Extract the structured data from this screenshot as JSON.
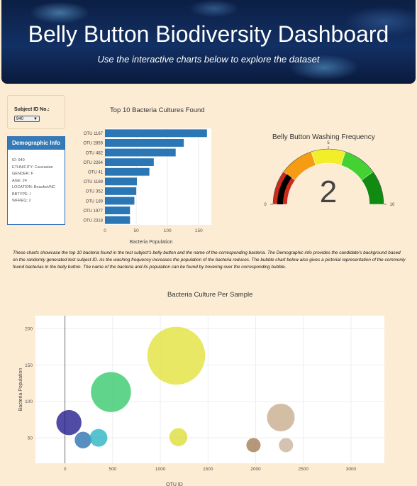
{
  "header": {
    "title": "Belly Button Biodiversity Dashboard",
    "subtitle": "Use the interactive charts below to explore the dataset"
  },
  "selector": {
    "label": "Subject ID No.:",
    "selected": "940"
  },
  "demographics": {
    "title": "Demographic Info",
    "items": [
      "ID: 940",
      "ETHNICITY: Caucasian",
      "GENDER: F",
      "AGE: 24",
      "LOCATION: Beaufort/NC",
      "BBTYPE: I",
      "WFREQ: 2"
    ]
  },
  "description": "These charts showcase the top 10 bacteria found in the test subject's belly button and the name of the corresponding bacteria. The Demographic info provides the candidate's background based on the randomly generated test subject ID. As the washing frequency increases the population of the bacteria reduces. The bubble chart below also gives a pictorial representation of the commonly found bacterias in the belly button. The name of the bacteria and its population can be found by hovering over the corresponding bubble.",
  "chart_data": [
    {
      "type": "bar",
      "orientation": "horizontal",
      "title": "Top 10 Bacteria Cultures Found",
      "xlabel": "Bacteria Population",
      "categories": [
        "OTU 1167",
        "OTU 2859",
        "OTU 482",
        "OTU 2264",
        "OTU 41",
        "OTU 1189",
        "OTU 352",
        "OTU 189",
        "OTU 1977",
        "OTU 2318"
      ],
      "values": [
        163,
        126,
        113,
        78,
        71,
        51,
        50,
        47,
        40,
        40
      ],
      "xlim": [
        0,
        170
      ],
      "xticks": [
        0,
        50,
        100,
        150
      ],
      "color": "#2b76b4",
      "grid": true
    },
    {
      "type": "gauge",
      "title": "Belly Button Washing Frequency",
      "value": 2,
      "range": [
        0,
        10
      ],
      "tick_labels": [
        "0",
        "5",
        "10"
      ],
      "bands": [
        {
          "from": 0,
          "to": 2,
          "color": "#cc2a1a"
        },
        {
          "from": 2,
          "to": 4,
          "color": "#f59c12"
        },
        {
          "from": 4,
          "to": 6,
          "color": "#f3ee2a"
        },
        {
          "from": 6,
          "to": 8,
          "color": "#44d233"
        },
        {
          "from": 8,
          "to": 10,
          "color": "#118a11"
        }
      ],
      "bar_color": "#000000"
    },
    {
      "type": "scatter",
      "subtype": "bubble",
      "title": "Bacteria Culture Per Sample",
      "xlabel": "OTU ID",
      "ylabel": "Bacteria Population",
      "xlim": [
        -310,
        3350
      ],
      "ylim": [
        15,
        218
      ],
      "xticks": [
        0,
        500,
        1000,
        1500,
        2000,
        2500,
        3000
      ],
      "yticks": [
        50,
        100,
        150,
        200
      ],
      "points": [
        {
          "x": 41,
          "y": 71,
          "color": "#1f1a8c"
        },
        {
          "x": 189,
          "y": 47,
          "color": "#2a70ae"
        },
        {
          "x": 352,
          "y": 50,
          "color": "#27b2c2"
        },
        {
          "x": 482,
          "y": 113,
          "color": "#34c86a"
        },
        {
          "x": 1167,
          "y": 163,
          "color": "#e2e23a"
        },
        {
          "x": 1189,
          "y": 51,
          "color": "#dcdc36"
        },
        {
          "x": 1977,
          "y": 40,
          "color": "#a27a54"
        },
        {
          "x": 2264,
          "y": 78,
          "color": "#c6aa8c"
        },
        {
          "x": 2318,
          "y": 40,
          "color": "#c9b29c"
        }
      ],
      "grid": true
    }
  ]
}
